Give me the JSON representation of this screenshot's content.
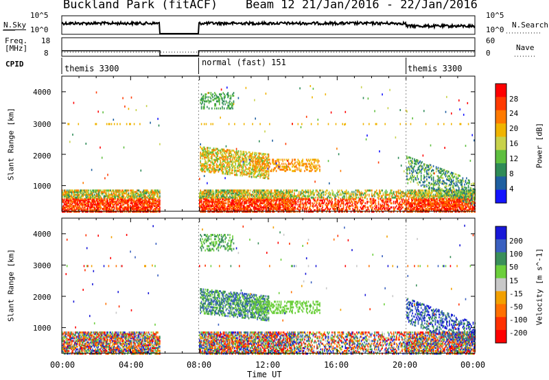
{
  "header": {
    "station": "Buckland Park (fitACF)",
    "beam": "Beam 12",
    "date_range": "21/Jan/2016 - 22/Jan/2016"
  },
  "top_panels": {
    "nsky": {
      "left_label": "N.Sky",
      "right_label": "N.Search",
      "left_ticks": [
        "10^5",
        "10^0"
      ],
      "right_ticks": [
        "10^5",
        "10^0"
      ]
    },
    "freq": {
      "left_label_1": "Freq.",
      "left_label_2": "[MHz]",
      "right_label": "Nave",
      "left_ticks": [
        "18",
        "8"
      ],
      "right_ticks": [
        "60",
        "0"
      ]
    },
    "cpid": {
      "label": "CPID",
      "segments": [
        "themis 3300",
        "normal (fast) 151",
        "themis 3300"
      ]
    }
  },
  "colors": {
    "power": [
      "#1414ff",
      "#1e5fa0",
      "#2e8b57",
      "#5fbf3f",
      "#c8d24b",
      "#f0b400",
      "#ff7a00",
      "#ff3a00",
      "#ff0000"
    ],
    "velocity": [
      "#1818d8",
      "#3a60c0",
      "#3a8f5a",
      "#6ccf3c",
      "#c8c8c8",
      "#f2a000",
      "#ff7000",
      "#ff3000",
      "#ff0000"
    ]
  },
  "chart_data": [
    {
      "type": "heatmap",
      "name": "power",
      "ylabel": "Slant Range [km]",
      "ylim": [
        180,
        4500
      ],
      "yticks": [
        "1000",
        "2000",
        "3000",
        "4000"
      ],
      "colorbar_label": "Power [dB]",
      "colorbar_ticks": [
        "4",
        "8",
        "12",
        "16",
        "20",
        "24",
        "28"
      ]
    },
    {
      "type": "heatmap",
      "name": "velocity",
      "ylabel": "Slant Range [km]",
      "ylim": [
        180,
        4500
      ],
      "yticks": [
        "1000",
        "2000",
        "3000",
        "4000"
      ],
      "colorbar_label": "Velocity [m s^-1]",
      "colorbar_ticks": [
        "200",
        "100",
        "50",
        "15",
        "-15",
        "-50",
        "-100",
        "-200"
      ]
    }
  ],
  "xaxis": {
    "label": "Time UT",
    "ticks": [
      "00:00",
      "04:00",
      "08:00",
      "12:00",
      "16:00",
      "20:00",
      "00:00"
    ],
    "range_hours": [
      0,
      24
    ]
  }
}
